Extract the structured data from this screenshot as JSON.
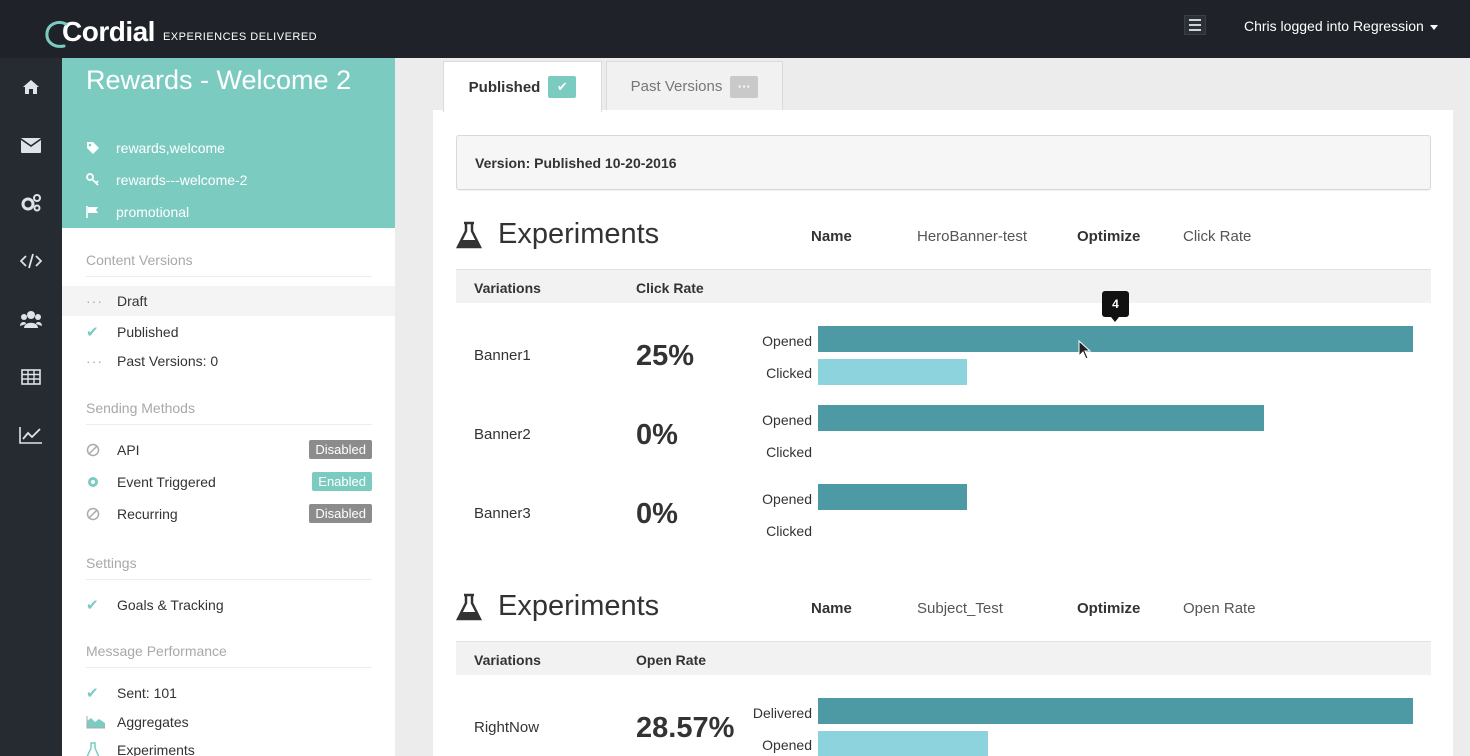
{
  "header": {
    "logo_text": "Cordial",
    "logo_tagline": "EXPERIENCES DELIVERED",
    "user_menu_label": "Chris logged into Regression"
  },
  "nav_rail": {
    "icons": [
      "home-icon",
      "envelope-icon",
      "gears-icon",
      "code-icon",
      "users-icon",
      "table-icon",
      "chart-line-icon"
    ]
  },
  "message": {
    "title": "Rewards - Welcome 2",
    "tags": "rewards,welcome",
    "key": "rewards---welcome-2",
    "category": "promotional"
  },
  "sidebar": {
    "content_versions": {
      "heading": "Content Versions",
      "items": [
        {
          "label": "Draft"
        },
        {
          "label": "Published"
        },
        {
          "label": "Past Versions: 0"
        }
      ]
    },
    "sending_methods": {
      "heading": "Sending Methods",
      "items": [
        {
          "label": "API",
          "status": "Disabled"
        },
        {
          "label": "Event Triggered",
          "status": "Enabled"
        },
        {
          "label": "Recurring",
          "status": "Disabled"
        }
      ]
    },
    "settings": {
      "heading": "Settings",
      "items": [
        {
          "label": "Goals & Tracking"
        }
      ]
    },
    "performance": {
      "heading": "Message Performance",
      "items": [
        {
          "label": "Sent: 101"
        },
        {
          "label": "Aggregates"
        },
        {
          "label": "Experiments"
        }
      ]
    }
  },
  "tabs": {
    "published": "Published",
    "past_versions": "Past Versions",
    "past_badge": "···"
  },
  "version_label": "Version: Published 10-20-2016",
  "experiments": [
    {
      "title": "Experiments",
      "name_label": "Name",
      "name_value": "HeroBanner-test",
      "optimize_label": "Optimize",
      "optimize_value": "Click Rate",
      "col_variations": "Variations",
      "col_rate": "Click Rate",
      "variations": [
        {
          "name": "Banner1",
          "rate": "25%",
          "metrics": [
            {
              "label": "Opened",
              "value": 4
            },
            {
              "label": "Clicked",
              "value": 1
            }
          ]
        },
        {
          "name": "Banner2",
          "rate": "0%",
          "metrics": [
            {
              "label": "Opened",
              "value": 3
            },
            {
              "label": "Clicked",
              "value": 0
            }
          ]
        },
        {
          "name": "Banner3",
          "rate": "0%",
          "metrics": [
            {
              "label": "Opened",
              "value": 1
            },
            {
              "label": "Clicked",
              "value": 0
            }
          ]
        }
      ]
    },
    {
      "title": "Experiments",
      "name_label": "Name",
      "name_value": "Subject_Test",
      "optimize_label": "Optimize",
      "optimize_value": "Open Rate",
      "col_variations": "Variations",
      "col_rate": "Open Rate",
      "variations": [
        {
          "name": "RightNow",
          "rate": "28.57%",
          "metrics": [
            {
              "label": "Delivered",
              "value": 7
            },
            {
              "label": "Opened",
              "value": 2
            }
          ]
        }
      ]
    }
  ],
  "tooltip_value": "4",
  "colors": {
    "accent": "#7ccbc1",
    "bar_primary": "#4e9aa4",
    "bar_secondary": "#8dd3de",
    "topbar": "#1f2228"
  }
}
